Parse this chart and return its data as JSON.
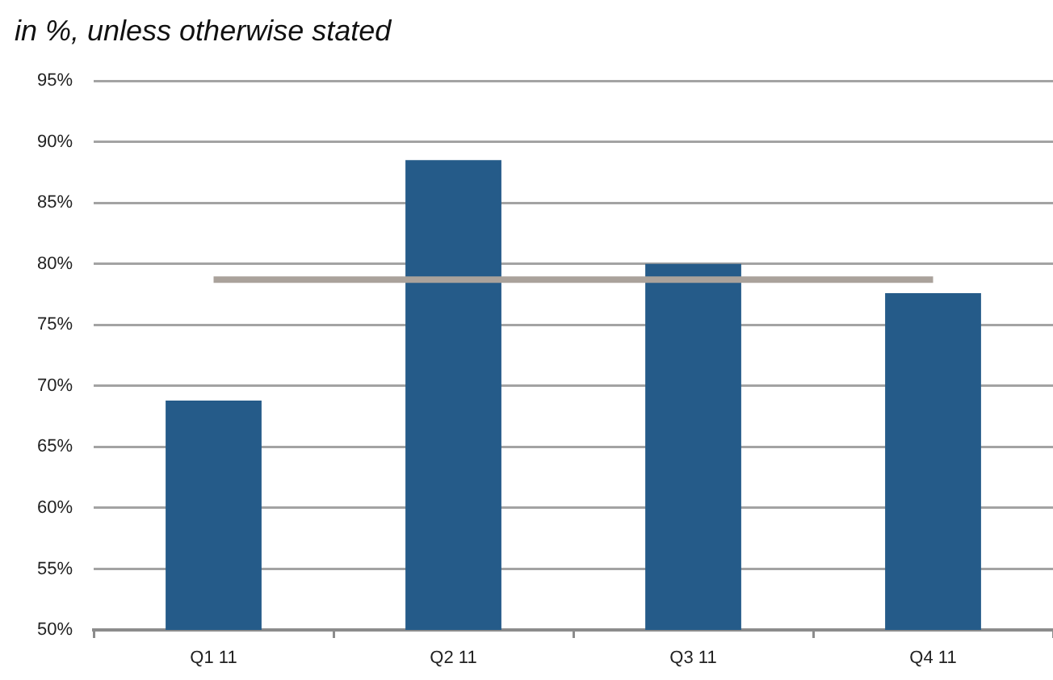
{
  "chart_data": {
    "type": "bar",
    "subtitle": "in %, unless otherwise stated",
    "categories": [
      "Q1 11",
      "Q2 11",
      "Q3 11",
      "Q4 11"
    ],
    "series": [
      {
        "color": "#255b89",
        "values": [
          68.8,
          88.5,
          80.0,
          77.6
        ]
      },
      {
        "type": "line",
        "color": "#aaa29b",
        "values": [
          78.7,
          78.7,
          78.7,
          78.7
        ]
      }
    ],
    "ylim": [
      50,
      95
    ],
    "yticks": [
      {
        "value": 50,
        "label": "50%"
      },
      {
        "value": 55,
        "label": "55%"
      },
      {
        "value": 60,
        "label": "60%"
      },
      {
        "value": 65,
        "label": "65%"
      },
      {
        "value": 70,
        "label": "70%"
      },
      {
        "value": 75,
        "label": "75%"
      },
      {
        "value": 80,
        "label": "80%"
      },
      {
        "value": 85,
        "label": "85%"
      },
      {
        "value": 90,
        "label": "90%"
      },
      {
        "value": 95,
        "label": "95%"
      }
    ],
    "grid": "y"
  }
}
